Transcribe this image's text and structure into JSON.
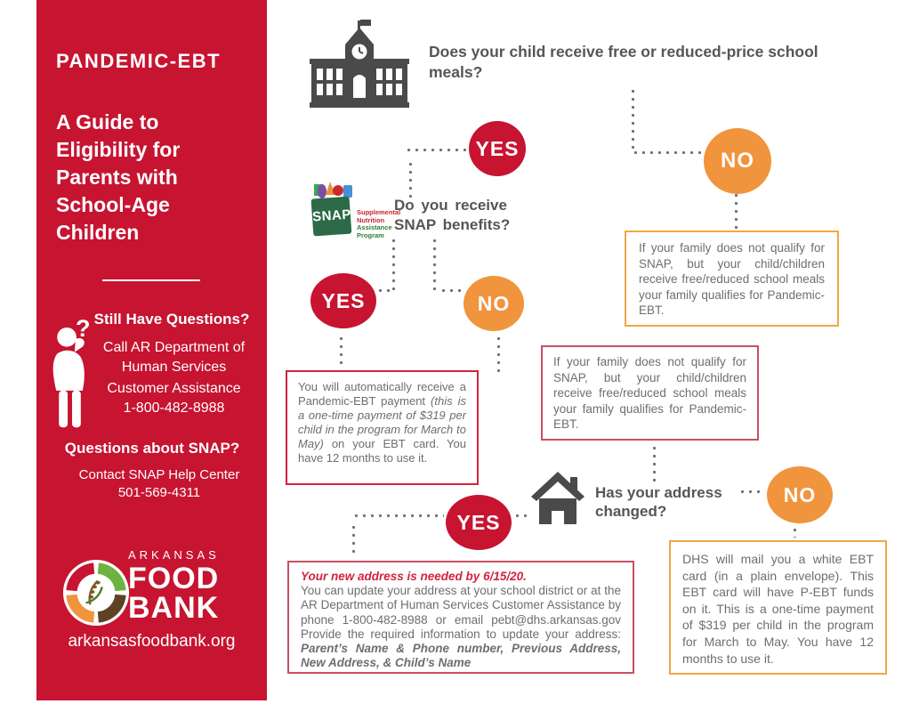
{
  "colors": {
    "brand_red": "#C61431",
    "accent_orange": "#F0943D",
    "orange_border": "#F0A848",
    "red_border": "#D2243E",
    "pink_red_border": "#CB4F60",
    "body_text_gray": "#6D6E71",
    "question_text_gray": "#55565A",
    "icon_gray": "#4A4A4C",
    "snap_bag_green": "#2D6A47"
  },
  "sidebar": {
    "title": "PANDEMIC-EBT",
    "subtitle": "A Guide to\nEligibility for\nParents with\nSchool-Age\nChildren",
    "still_questions_heading": "Still Have Questions?",
    "question_mark": "?",
    "call_text": "Call AR Department of\nHuman Services",
    "customer_text": "Customer Assistance\n1-800-482-8988",
    "snap_questions_heading": "Questions about SNAP?",
    "snap_contact_text": "Contact SNAP Help Center\n501-569-4311",
    "logo": {
      "region": "ARKANSAS",
      "line1": "FOOD",
      "line2": "BANK",
      "website": "arkansasfoodbank.org"
    }
  },
  "flow": {
    "question1": "Does your child receive free or reduced-price school\nmeals?",
    "question2": "Do you receive\nSNAP benefits?",
    "question3": "Has your address\nchanged?",
    "yes_label": "YES",
    "no_label": "NO"
  },
  "snap_logo": {
    "name": "SNAP",
    "caption": [
      "Supplemental",
      "Nutrition",
      "Assistance",
      "Program"
    ]
  },
  "boxes": {
    "snap_yes": {
      "segments": [
        {
          "style": "normal",
          "text": "You will automatically receive a Pandemic-EBT payment "
        },
        {
          "style": "italic",
          "text": "(this is a one-time payment of $319 per child in the program for March to May)"
        },
        {
          "style": "normal",
          "text": " on your EBT card. You have 12 months to use it."
        }
      ]
    },
    "snap_no": {
      "text": "If your family does not qualify for SNAP, but your child/children receive free/reduced school meals your family qualifies for Pandemic-EBT."
    },
    "meals_no": {
      "text": "If your family does not qualify for SNAP, but your child/children receive free/reduced school meals your family qualifies for Pandemic-EBT."
    },
    "address_yes": {
      "segments": [
        {
          "style": "red-bold-italic",
          "text": "Your new address is needed by 6/15/20.\n"
        },
        {
          "style": "normal",
          "text": "You can update your address at your school district or at the AR Department of Human Services Customer Assistance by phone 1-800-482-8988 or email pebt@dhs.arkansas.gov Provide the required information to update your address: "
        },
        {
          "style": "bold-italic",
          "text": "Parent’s Name & Phone number, Previous Address, New Address, & Child’s Name"
        }
      ]
    },
    "address_no": {
      "text": "DHS will mail you a white EBT card (in a plain envelope). This EBT card will have P-EBT funds on it. This is a one-time payment of $319 per child in the program for March to May. You have 12 months to use it."
    }
  }
}
